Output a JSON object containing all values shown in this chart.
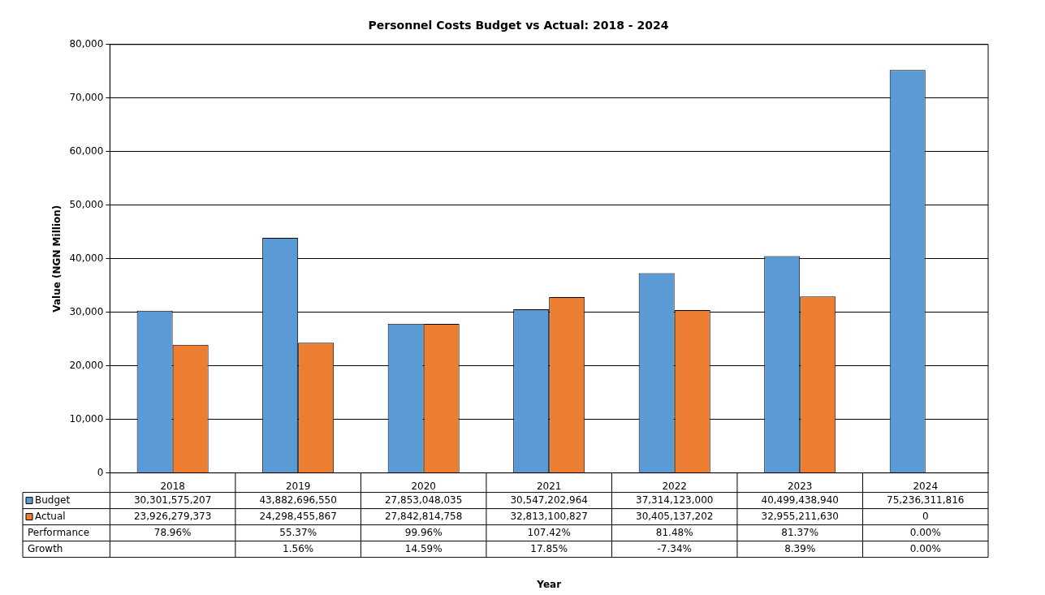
{
  "chart_data": {
    "type": "bar",
    "title": "Personnel Costs Budget vs Actual: 2018 - 2024",
    "ylabel": "Value (NGN Million)",
    "categories": [
      "2018",
      "2019",
      "2020",
      "2021",
      "2022",
      "2023",
      "2024"
    ],
    "series": [
      {
        "name": "Budget",
        "color": "#5b9bd5",
        "values": [
          30301.575207,
          43882.69655,
          27853.048035,
          30547.202964,
          37314.123,
          40499.43894,
          75236.311816
        ]
      },
      {
        "name": "Actual",
        "color": "#ed7d31",
        "values": [
          23926.279373,
          24298.455867,
          27842.814758,
          32813.100827,
          30405.137202,
          32955.21163,
          0
        ]
      }
    ],
    "annotations": [
      "Year",
      "30,301,575,207",
      "43,882,696,550",
      "27,853,048,035",
      "30,547,202,964",
      "37,314,123,000",
      "40,499,438,940",
      "75,236,311,816",
      "23,926,279,373",
      "24,298,455,867",
      "27,842,814,758",
      "32,813,100,827",
      "30,405,137,202",
      "32,955,211,630",
      "0",
      "Performance",
      "78.96%",
      "55.37%",
      "99.96%",
      "107.42%",
      "81.48%",
      "81.37%",
      "0.00%",
      "Growth",
      "1.56%",
      "14.59%",
      "17.85%",
      "-7.34%",
      "8.39%",
      "0.00%"
    ],
    "ylim": [
      0,
      80000
    ],
    "yticks": [
      0,
      {
        "value": 10000,
        "label": "10,000"
      },
      {
        "value": 20000,
        "label": "20,000"
      },
      {
        "value": 30000,
        "label": "30,000"
      },
      {
        "value": 40000,
        "label": "40,000"
      },
      {
        "value": 50000,
        "label": "50,000"
      },
      {
        "value": 60000,
        "label": "60,000"
      },
      {
        "value": 70000,
        "label": "70,000"
      },
      {
        "value": 80000,
        "label": "80,000"
      }
    ],
    "grid": "y",
    "legend": "bottom"
  }
}
